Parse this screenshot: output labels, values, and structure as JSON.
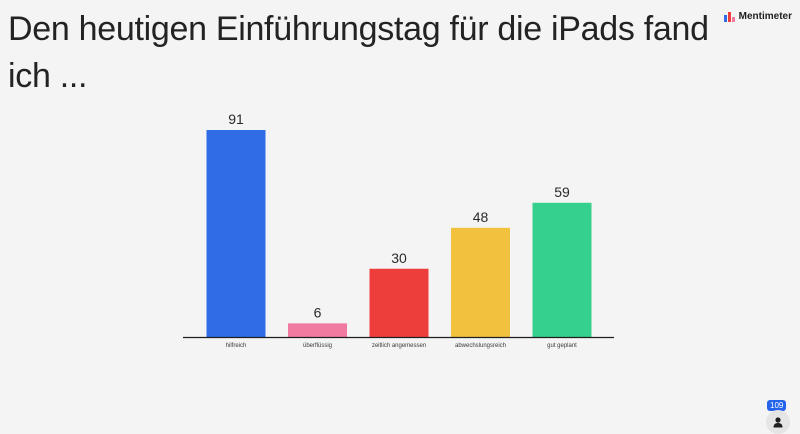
{
  "slide": {
    "title": "Den heutigen Einführungstag für die iPads fand ich ..."
  },
  "brand": {
    "name": "Mentimeter",
    "icon": "bar-chart-logo"
  },
  "participants": {
    "count": "109",
    "icon": "person-icon"
  },
  "chart_data": {
    "type": "bar",
    "categories": [
      "hilfreich",
      "überflüssig",
      "zeitlich angemessen",
      "abwechslungsreich",
      "gut geplant"
    ],
    "values": [
      91,
      6,
      30,
      48,
      59
    ],
    "colors": [
      "#2f6ce5",
      "#f07aa0",
      "#ee3e3b",
      "#f2c13e",
      "#35d08d"
    ],
    "ylim": [
      0,
      91
    ],
    "grid": false,
    "legend": "none"
  }
}
